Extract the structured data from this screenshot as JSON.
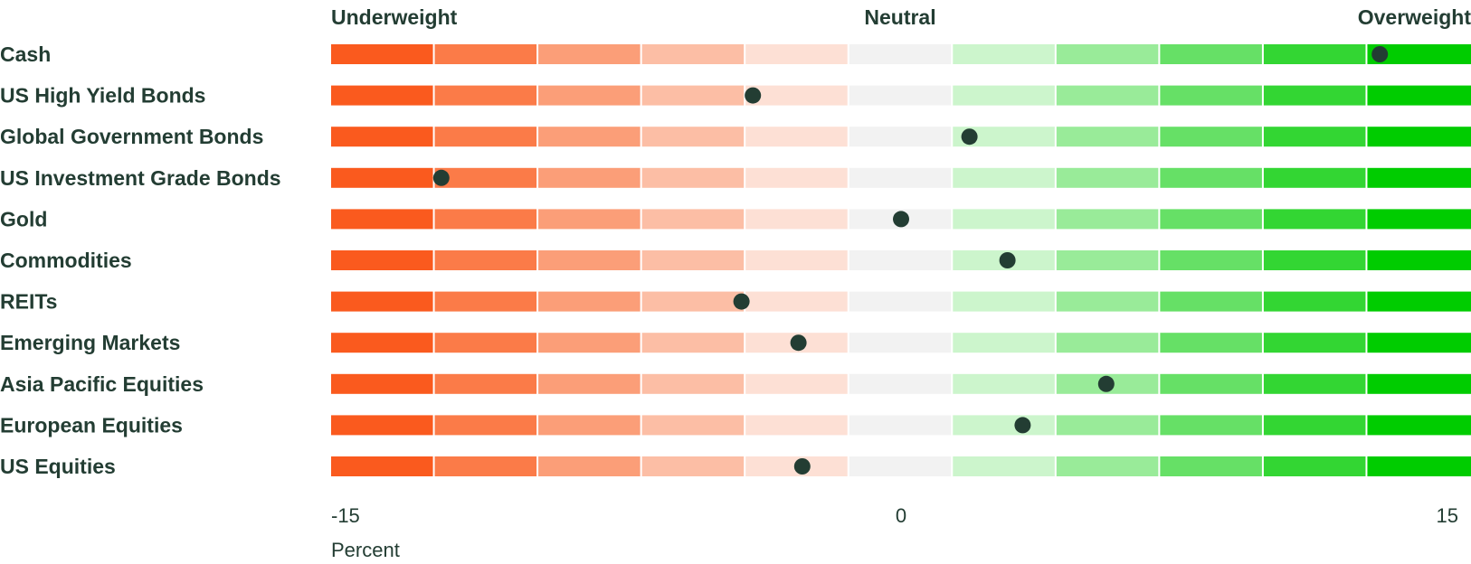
{
  "chart_data": {
    "type": "dot-scale",
    "scale_labels": {
      "left": "Underweight",
      "center": "Neutral",
      "right": "Overweight"
    },
    "xlim": [
      -15,
      15
    ],
    "x_ticks": [
      {
        "value": -15,
        "label": "-15"
      },
      {
        "value": 0,
        "label": "0"
      },
      {
        "value": 15,
        "label": "15"
      }
    ],
    "xlabel": "Percent",
    "band_colors": [
      "#fa5a1e",
      "#fb7b48",
      "#fb9e78",
      "#fcbea5",
      "#fde0d5",
      "#f2f2f2",
      "#ccf5cc",
      "#99eb99",
      "#66e066",
      "#33d633",
      "#00cc00"
    ],
    "dot_color": "#233d33",
    "categories": [
      "Cash",
      "US High Yield Bonds",
      "Global Government Bonds",
      "US Investment Grade Bonds",
      "Gold",
      "Commodities",
      "REITs",
      "Emerging Markets",
      "Asia Pacific Equities",
      "European Equities",
      "US Equities"
    ],
    "values": [
      12.6,
      -3.9,
      1.8,
      -12.1,
      0.0,
      2.8,
      -4.2,
      -2.7,
      5.4,
      3.2,
      -2.6
    ]
  }
}
